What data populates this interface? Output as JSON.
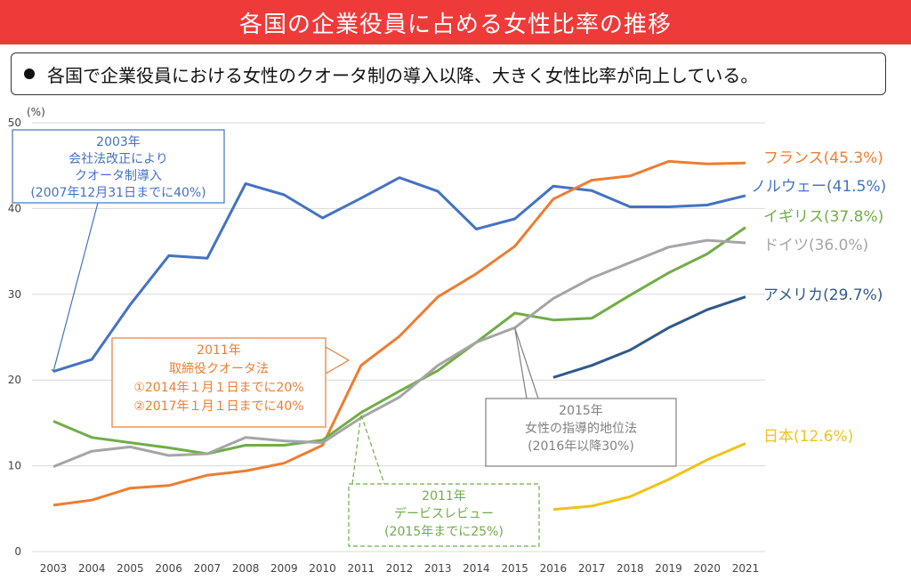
{
  "header": {
    "title": "各国の企業役員に占める女性比率の推移",
    "summary": "各国で企業役員における女性のクオータ制の導入以降、大きく女性比率が向上している。"
  },
  "chart_data": {
    "type": "line",
    "ylabel": "(%)",
    "ylim": [
      0,
      50
    ],
    "yticks": [
      0,
      10,
      20,
      30,
      40,
      50
    ],
    "x": [
      2003,
      2004,
      2005,
      2006,
      2007,
      2008,
      2009,
      2010,
      2011,
      2012,
      2013,
      2014,
      2015,
      2016,
      2017,
      2018,
      2019,
      2020,
      2021
    ],
    "grid": true,
    "series": [
      {
        "name": "ノルウェー",
        "end_label": "ノルウェー(41.5%)",
        "color": "#4472c4",
        "values": [
          21.0,
          22.4,
          28.8,
          34.5,
          34.2,
          42.9,
          41.6,
          38.9,
          41.2,
          43.6,
          42.0,
          37.6,
          38.8,
          42.6,
          42.1,
          40.2,
          40.2,
          40.4,
          41.5
        ]
      },
      {
        "name": "フランス",
        "end_label": "フランス(45.3%)",
        "color": "#ed7d31",
        "values": [
          5.4,
          6.0,
          7.4,
          7.7,
          8.9,
          9.4,
          10.3,
          12.4,
          21.7,
          25.1,
          29.7,
          32.4,
          35.6,
          41.1,
          43.3,
          43.8,
          45.5,
          45.2,
          45.3
        ]
      },
      {
        "name": "イギリス",
        "end_label": "イギリス(37.8%)",
        "color": "#70ad47",
        "values": [
          15.2,
          13.3,
          12.7,
          12.1,
          11.4,
          12.4,
          12.4,
          13.0,
          16.2,
          18.7,
          21.1,
          24.4,
          27.8,
          27.0,
          27.2,
          29.9,
          32.5,
          34.7,
          37.8
        ]
      },
      {
        "name": "ドイツ",
        "end_label": "ドイツ(36.0%)",
        "color": "#a5a5a5",
        "values": [
          9.9,
          11.7,
          12.2,
          11.2,
          11.4,
          13.3,
          12.9,
          12.7,
          15.6,
          18.0,
          21.7,
          24.4,
          26.1,
          29.5,
          31.9,
          33.7,
          35.5,
          36.3,
          36.0
        ]
      },
      {
        "name": "アメリカ",
        "end_label": "アメリカ(29.7%)",
        "color": "#2e5a8a",
        "values": [
          null,
          null,
          null,
          null,
          null,
          null,
          null,
          null,
          null,
          null,
          null,
          null,
          null,
          20.3,
          21.7,
          23.5,
          26.1,
          28.2,
          29.7
        ]
      },
      {
        "name": "日本",
        "end_label": "日本(12.6%)",
        "color": "#f2c218",
        "values": [
          null,
          null,
          null,
          null,
          null,
          null,
          null,
          null,
          null,
          null,
          null,
          null,
          null,
          4.9,
          5.3,
          6.4,
          8.4,
          10.7,
          12.6
        ]
      }
    ],
    "annotations": [
      {
        "id": "norway",
        "color": "#4472c4",
        "dashed": false,
        "lines": [
          "2003年",
          "会社法改正により",
          "クオータ制導入",
          "(2007年12月31日までに40%)"
        ]
      },
      {
        "id": "france",
        "color": "#ed7d31",
        "dashed": false,
        "lines": [
          "2011年",
          "取締役クオータ法",
          "①2014年１月１日までに20%",
          "②2017年１月１日までに40%"
        ]
      },
      {
        "id": "germany",
        "color": "#808080",
        "dashed": false,
        "lines": [
          "2015年",
          "女性の指導的地位法",
          "(2016年以降30%)"
        ]
      },
      {
        "id": "uk",
        "color": "#70ad47",
        "dashed": true,
        "lines": [
          "2011年",
          "デービスレビュー",
          "(2015年までに25%)"
        ]
      }
    ]
  }
}
